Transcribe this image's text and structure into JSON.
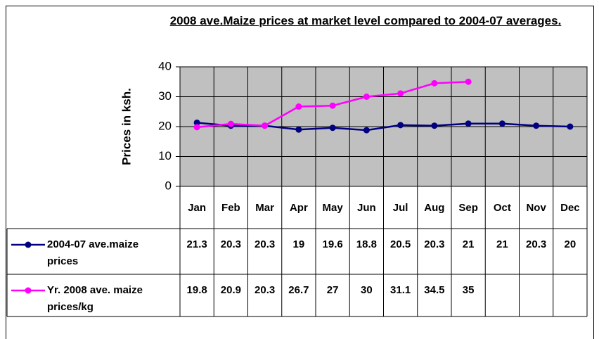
{
  "chart_data": {
    "type": "line",
    "title": "2008 ave.Maize prices at market level compared to 2004-07 averages.",
    "y_label": "Prices in ksh.",
    "categories": [
      "Jan",
      "Feb",
      "Mar",
      "Apr",
      "May",
      "Jun",
      "Jul",
      "Aug",
      "Sep",
      "Oct",
      "Nov",
      "Dec"
    ],
    "series": [
      {
        "name": "2004-07 ave.maize prices",
        "color": "#000080",
        "values": [
          21.3,
          20.3,
          20.3,
          19,
          19.6,
          18.8,
          20.5,
          20.3,
          21,
          21,
          20.3,
          20
        ]
      },
      {
        "name": "Yr. 2008 ave. maize prices/kg",
        "color": "#ff00ff",
        "values": [
          19.8,
          20.9,
          20.3,
          26.7,
          27,
          30,
          31.1,
          34.5,
          35,
          null,
          null,
          null
        ]
      }
    ],
    "ylim": [
      0,
      40
    ],
    "yticks": [
      0,
      10,
      20,
      30,
      40
    ],
    "grid": true,
    "plot_background": "#c0c0c0",
    "data_table": true
  }
}
